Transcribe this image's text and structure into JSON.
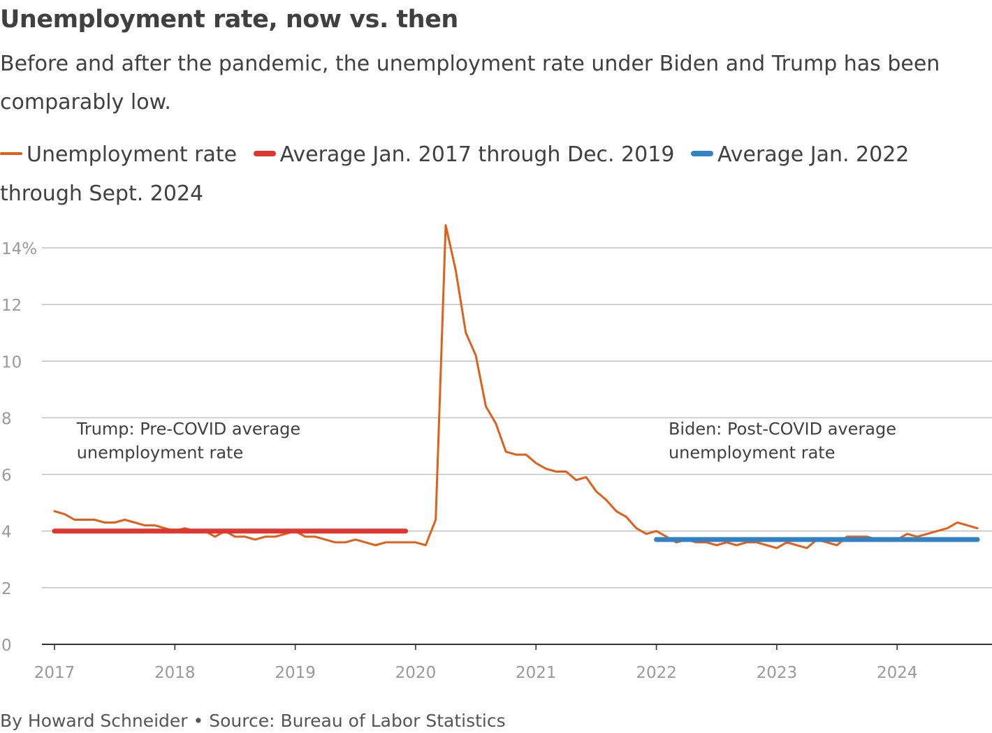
{
  "title": "Unemployment rate, now vs. then",
  "subtitle": "Before and after the pandemic, the unemployment rate under Biden and Trump has been comparably low.",
  "legend": [
    {
      "label": "Unemployment rate",
      "color": "#e0601b",
      "style": "thin"
    },
    {
      "label": "Average Jan. 2017 through Dec. 2019",
      "color": "#de3730",
      "style": "thick"
    },
    {
      "label": "Average Jan. 2022 through Sept. 2024",
      "color": "#3282c4",
      "style": "thick"
    }
  ],
  "footer": "By Howard Schneider • Source: Bureau of Labor Statistics",
  "chart_data": {
    "type": "line",
    "ylim": [
      0,
      15
    ],
    "yticks": [
      {
        "value": 0,
        "label": "0"
      },
      {
        "value": 2,
        "label": "2"
      },
      {
        "value": 4,
        "label": "4"
      },
      {
        "value": 6,
        "label": "6"
      },
      {
        "value": 8,
        "label": "8"
      },
      {
        "value": 10,
        "label": "10"
      },
      {
        "value": 12,
        "label": "12"
      },
      {
        "value": 14,
        "label": "14%"
      }
    ],
    "xticks": [
      {
        "value": "2017-01",
        "label": "2017"
      },
      {
        "value": "2018-01",
        "label": "2018"
      },
      {
        "value": "2019-01",
        "label": "2019"
      },
      {
        "value": "2020-01",
        "label": "2020"
      },
      {
        "value": "2021-01",
        "label": "2021"
      },
      {
        "value": "2022-01",
        "label": "2022"
      },
      {
        "value": "2023-01",
        "label": "2023"
      },
      {
        "value": "2024-01",
        "label": "2024"
      }
    ],
    "x_start": "2017-01",
    "x_end": "2024-10",
    "grid": true,
    "legend_position": "top",
    "series": [
      {
        "name": "Unemployment rate",
        "color": "#e0601b",
        "start": "2017-01",
        "values": [
          4.7,
          4.6,
          4.4,
          4.4,
          4.4,
          4.3,
          4.3,
          4.4,
          4.3,
          4.2,
          4.2,
          4.1,
          4.0,
          4.1,
          4.0,
          4.0,
          3.8,
          4.0,
          3.8,
          3.8,
          3.7,
          3.8,
          3.8,
          3.9,
          4.0,
          3.8,
          3.8,
          3.7,
          3.6,
          3.6,
          3.7,
          3.6,
          3.5,
          3.6,
          3.6,
          3.6,
          3.6,
          3.5,
          4.4,
          14.8,
          13.2,
          11.0,
          10.2,
          8.4,
          7.8,
          6.8,
          6.7,
          6.7,
          6.4,
          6.2,
          6.1,
          6.1,
          5.8,
          5.9,
          5.4,
          5.1,
          4.7,
          4.5,
          4.1,
          3.9,
          4.0,
          3.8,
          3.6,
          3.7,
          3.6,
          3.6,
          3.5,
          3.6,
          3.5,
          3.6,
          3.6,
          3.5,
          3.4,
          3.6,
          3.5,
          3.4,
          3.7,
          3.6,
          3.5,
          3.8,
          3.8,
          3.8,
          3.7,
          3.7,
          3.7,
          3.9,
          3.8,
          3.9,
          4.0,
          4.1,
          4.3,
          4.2,
          4.1
        ]
      },
      {
        "name": "Average Jan. 2017 through Dec. 2019",
        "color": "#de3730",
        "x": [
          "2017-01",
          "2019-12"
        ],
        "values": [
          4.0,
          4.0
        ]
      },
      {
        "name": "Average Jan. 2022 through Sept. 2024",
        "color": "#3282c4",
        "x": [
          "2022-01",
          "2024-09"
        ],
        "values": [
          3.7,
          3.7
        ]
      }
    ],
    "annotations": [
      {
        "lines": [
          "Trump: Pre-COVID average",
          "unemployment rate"
        ],
        "x": "2017-03",
        "y": 7.6
      },
      {
        "lines": [
          "Biden: Post-COVID average",
          "unemployment rate"
        ],
        "x": "2022-02",
        "y": 7.6
      }
    ]
  }
}
